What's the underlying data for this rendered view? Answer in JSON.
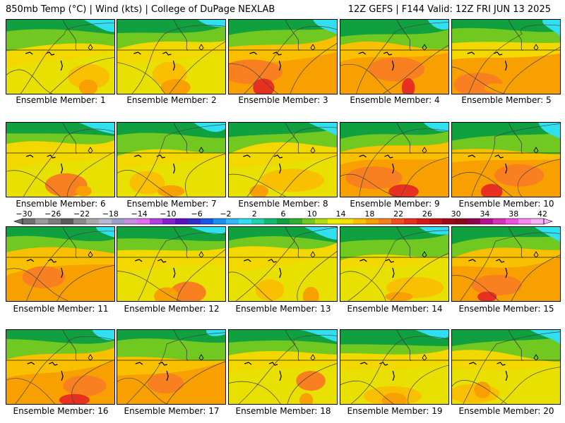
{
  "header": {
    "left": "850mb Temp (°C) | Wind (kts) | College of DuPage NEXLAB",
    "right": "12Z GEFS | F144 Valid: 12Z FRI JUN 13 2025"
  },
  "panels": [
    {
      "label": "Ensemble Member: 1"
    },
    {
      "label": "Ensemble Member: 2"
    },
    {
      "label": "Ensemble Member: 3"
    },
    {
      "label": "Ensemble Member: 4"
    },
    {
      "label": "Ensemble Member: 5"
    },
    {
      "label": "Ensemble Member: 6"
    },
    {
      "label": "Ensemble Member: 7"
    },
    {
      "label": "Ensemble Member: 8"
    },
    {
      "label": "Ensemble Member: 9"
    },
    {
      "label": "Ensemble Member: 10"
    },
    {
      "label": "Ensemble Member: 11"
    },
    {
      "label": "Ensemble Member: 12"
    },
    {
      "label": "Ensemble Member: 13"
    },
    {
      "label": "Ensemble Member: 14"
    },
    {
      "label": "Ensemble Member: 15"
    },
    {
      "label": "Ensemble Member: 16"
    },
    {
      "label": "Ensemble Member: 17"
    },
    {
      "label": "Ensemble Member: 18"
    },
    {
      "label": "Ensemble Member: 19"
    },
    {
      "label": "Ensemble Member: 20"
    }
  ],
  "colorbar": {
    "ticks": [
      "-30",
      "-26",
      "-22",
      "-18",
      "-14",
      "-10",
      "-6",
      "-2",
      "2",
      "6",
      "10",
      "14",
      "18",
      "22",
      "26",
      "30",
      "34",
      "38",
      "42"
    ],
    "colors": [
      "#707070",
      "#9a9a9a",
      "#7d7d7d",
      "#5a5a5a",
      "#898989",
      "#a9a9a9",
      "#b8b8d0",
      "#9aa0c8",
      "#c58ee0",
      "#e36cf0",
      "#b040e0",
      "#8420d0",
      "#5a10c0",
      "#3030c8",
      "#1858e8",
      "#1890f0",
      "#30b8f8",
      "#30e0f0",
      "#20d0b0",
      "#10b870",
      "#10a040",
      "#30b030",
      "#70c820",
      "#b0dc10",
      "#e8f000",
      "#f8e000",
      "#f8c000",
      "#f8a000",
      "#f88020",
      "#f05020",
      "#e83020",
      "#d81818",
      "#c01010",
      "#a00818",
      "#880818",
      "#900050",
      "#b81090",
      "#d830b8",
      "#f050e0",
      "#f888f0",
      "#f8b0f8"
    ]
  }
}
